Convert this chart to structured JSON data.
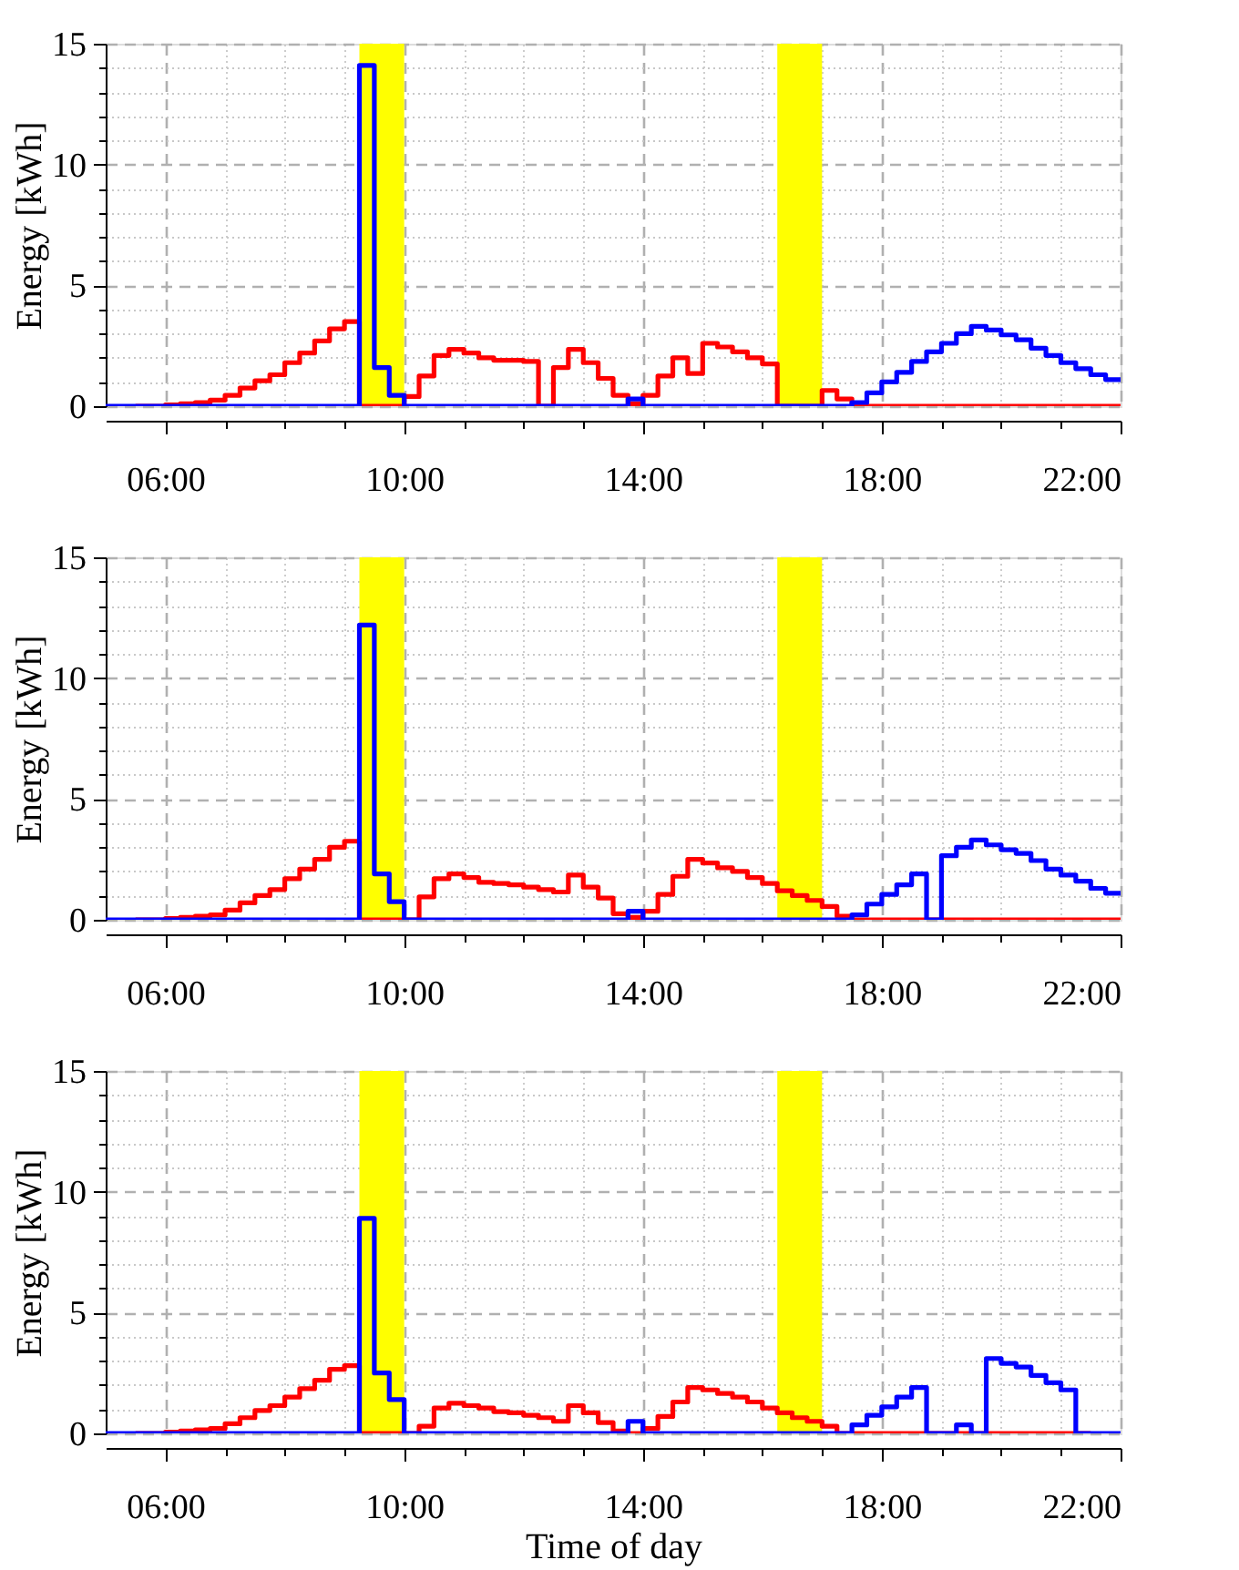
{
  "chart_data": [
    {
      "type": "step",
      "ylabel": "Energy [kWh]",
      "x": [
        5,
        5.25,
        5.5,
        5.75,
        6,
        6.25,
        6.5,
        6.75,
        7,
        7.25,
        7.5,
        7.75,
        8,
        8.25,
        8.5,
        8.75,
        9,
        9.25,
        9.5,
        9.75,
        10,
        10.25,
        10.5,
        10.75,
        11,
        11.25,
        11.5,
        11.75,
        12,
        12.25,
        12.5,
        12.75,
        13,
        13.25,
        13.5,
        13.75,
        14,
        14.25,
        14.5,
        14.75,
        15,
        15.25,
        15.5,
        15.75,
        16,
        16.25,
        16.5,
        16.75,
        17,
        17.25,
        17.5,
        17.75,
        18,
        18.25,
        18.5,
        18.75,
        19,
        19.25,
        19.5,
        19.75,
        20,
        20.25,
        20.5,
        20.75,
        21,
        21.25,
        21.5,
        21.75,
        22
      ],
      "series": [
        {
          "color": "#ff0000",
          "values": [
            null,
            null,
            0,
            0,
            0.05,
            0.1,
            0.15,
            0.25,
            0.45,
            0.75,
            1.05,
            1.3,
            1.8,
            2.2,
            2.7,
            3.2,
            3.5,
            0,
            0,
            0,
            0.4,
            1.25,
            2.1,
            2.35,
            2.2,
            2.0,
            1.9,
            1.9,
            1.85,
            0,
            1.6,
            2.35,
            1.8,
            1.15,
            0.45,
            0.1,
            0.45,
            1.25,
            2.0,
            1.35,
            2.6,
            2.45,
            2.25,
            2.0,
            1.75,
            0,
            0,
            0,
            0.65,
            0.3,
            0,
            0,
            0,
            0,
            0,
            0,
            0,
            0,
            0,
            0,
            0,
            0,
            0,
            0,
            0,
            0,
            0,
            0,
            0
          ]
        },
        {
          "color": "#0000ff",
          "values": [
            0,
            0,
            0,
            0,
            0,
            0,
            0,
            0,
            0,
            0,
            0,
            0,
            0,
            0,
            0,
            0,
            0,
            14.1,
            1.6,
            0.45,
            0,
            0,
            0,
            0,
            0,
            0,
            0,
            0,
            0,
            0,
            0,
            0,
            0,
            0,
            0,
            0.3,
            0,
            0,
            0,
            0,
            0,
            0,
            0,
            0,
            0,
            0,
            0,
            0,
            0,
            0,
            0.15,
            0.55,
            1.0,
            1.4,
            1.85,
            2.25,
            2.6,
            3.0,
            3.3,
            3.15,
            2.95,
            2.75,
            2.4,
            2.1,
            1.8,
            1.55,
            1.3,
            1.1,
            1.1
          ]
        }
      ],
      "xlim": [
        5,
        22
      ],
      "ylim": [
        0,
        15
      ],
      "xticks": [
        {
          "value": 6,
          "label": "06:00"
        },
        {
          "value": 7,
          "label": null
        },
        {
          "value": 8,
          "label": null
        },
        {
          "value": 9,
          "label": null
        },
        {
          "value": 10,
          "label": "10:00"
        },
        {
          "value": 11,
          "label": null
        },
        {
          "value": 12,
          "label": null
        },
        {
          "value": 13,
          "label": null
        },
        {
          "value": 14,
          "label": "14:00"
        },
        {
          "value": 15,
          "label": null
        },
        {
          "value": 16,
          "label": null
        },
        {
          "value": 17,
          "label": null
        },
        {
          "value": 18,
          "label": "18:00"
        },
        {
          "value": 19,
          "label": null
        },
        {
          "value": 20,
          "label": null
        },
        {
          "value": 21,
          "label": null
        },
        {
          "value": 22,
          "label": "22:00"
        }
      ],
      "yticks": [
        0,
        {
          "value": 1,
          "label": null
        },
        {
          "value": 2,
          "label": null
        },
        {
          "value": 3,
          "label": null
        },
        {
          "value": 4,
          "label": null
        },
        5,
        {
          "value": 6,
          "label": null
        },
        {
          "value": 7,
          "label": null
        },
        {
          "value": 8,
          "label": null
        },
        {
          "value": 9,
          "label": null
        },
        10,
        {
          "value": 11,
          "label": null
        },
        {
          "value": 12,
          "label": null
        },
        {
          "value": 13,
          "label": null
        },
        {
          "value": 14,
          "label": null
        },
        15
      ],
      "bands": [
        {
          "axis": "x",
          "from": 9.25,
          "to": 10,
          "color": "#ffff00"
        },
        {
          "axis": "x",
          "from": 16.25,
          "to": 17,
          "color": "#ffff00"
        }
      ],
      "grid": true
    },
    {
      "type": "step",
      "ylabel": "Energy [kWh]",
      "x": [
        5,
        5.25,
        5.5,
        5.75,
        6,
        6.25,
        6.5,
        6.75,
        7,
        7.25,
        7.5,
        7.75,
        8,
        8.25,
        8.5,
        8.75,
        9,
        9.25,
        9.5,
        9.75,
        10,
        10.25,
        10.5,
        10.75,
        11,
        11.25,
        11.5,
        11.75,
        12,
        12.25,
        12.5,
        12.75,
        13,
        13.25,
        13.5,
        13.75,
        14,
        14.25,
        14.5,
        14.75,
        15,
        15.25,
        15.5,
        15.75,
        16,
        16.25,
        16.5,
        16.75,
        17,
        17.25,
        17.5,
        17.75,
        18,
        18.25,
        18.5,
        18.75,
        19,
        19.25,
        19.5,
        19.75,
        20,
        20.25,
        20.5,
        20.75,
        21,
        21.25,
        21.5,
        21.75,
        22
      ],
      "series": [
        {
          "color": "#ff0000",
          "values": [
            null,
            null,
            0,
            0,
            0.05,
            0.1,
            0.15,
            0.2,
            0.4,
            0.7,
            1.0,
            1.25,
            1.7,
            2.1,
            2.5,
            3.0,
            3.25,
            0,
            0,
            0,
            0,
            0.95,
            1.7,
            1.9,
            1.75,
            1.55,
            1.5,
            1.45,
            1.35,
            1.25,
            1.15,
            1.85,
            1.35,
            0.9,
            0.25,
            0.1,
            0.35,
            1.05,
            1.8,
            2.5,
            2.35,
            2.15,
            2.0,
            1.75,
            1.5,
            1.2,
            1.0,
            0.8,
            0.55,
            0.15,
            0,
            0,
            0,
            0,
            0,
            0,
            0,
            0,
            0,
            0,
            0,
            0,
            0,
            0,
            0,
            0,
            0,
            0,
            0
          ]
        },
        {
          "color": "#0000ff",
          "values": [
            0,
            0,
            0,
            0,
            0,
            0,
            0,
            0,
            0,
            0,
            0,
            0,
            0,
            0,
            0,
            0,
            0,
            12.2,
            1.9,
            0.75,
            0,
            0,
            0,
            0,
            0,
            0,
            0,
            0,
            0,
            0,
            0,
            0,
            0,
            0,
            0,
            0.35,
            0,
            0,
            0,
            0,
            0,
            0,
            0,
            0,
            0,
            0,
            0,
            0,
            0,
            0,
            0.2,
            0.65,
            1.05,
            1.45,
            1.9,
            0,
            2.65,
            3.0,
            3.3,
            3.1,
            2.9,
            2.75,
            2.45,
            2.1,
            1.85,
            1.6,
            1.3,
            1.1,
            1.1
          ]
        }
      ],
      "xlim": [
        5,
        22
      ],
      "ylim": [
        0,
        15
      ],
      "xticks": [
        {
          "value": 6,
          "label": "06:00"
        },
        {
          "value": 7,
          "label": null
        },
        {
          "value": 8,
          "label": null
        },
        {
          "value": 9,
          "label": null
        },
        {
          "value": 10,
          "label": "10:00"
        },
        {
          "value": 11,
          "label": null
        },
        {
          "value": 12,
          "label": null
        },
        {
          "value": 13,
          "label": null
        },
        {
          "value": 14,
          "label": "14:00"
        },
        {
          "value": 15,
          "label": null
        },
        {
          "value": 16,
          "label": null
        },
        {
          "value": 17,
          "label": null
        },
        {
          "value": 18,
          "label": "18:00"
        },
        {
          "value": 19,
          "label": null
        },
        {
          "value": 20,
          "label": null
        },
        {
          "value": 21,
          "label": null
        },
        {
          "value": 22,
          "label": "22:00"
        }
      ],
      "yticks": [
        0,
        {
          "value": 1,
          "label": null
        },
        {
          "value": 2,
          "label": null
        },
        {
          "value": 3,
          "label": null
        },
        {
          "value": 4,
          "label": null
        },
        5,
        {
          "value": 6,
          "label": null
        },
        {
          "value": 7,
          "label": null
        },
        {
          "value": 8,
          "label": null
        },
        {
          "value": 9,
          "label": null
        },
        10,
        {
          "value": 11,
          "label": null
        },
        {
          "value": 12,
          "label": null
        },
        {
          "value": 13,
          "label": null
        },
        {
          "value": 14,
          "label": null
        },
        15
      ],
      "bands": [
        {
          "axis": "x",
          "from": 9.25,
          "to": 10,
          "color": "#ffff00"
        },
        {
          "axis": "x",
          "from": 16.25,
          "to": 17,
          "color": "#ffff00"
        }
      ],
      "grid": true
    },
    {
      "type": "step",
      "ylabel": "Energy [kWh]",
      "xlabel": "Time of day",
      "x": [
        5,
        5.25,
        5.5,
        5.75,
        6,
        6.25,
        6.5,
        6.75,
        7,
        7.25,
        7.5,
        7.75,
        8,
        8.25,
        8.5,
        8.75,
        9,
        9.25,
        9.5,
        9.75,
        10,
        10.25,
        10.5,
        10.75,
        11,
        11.25,
        11.5,
        11.75,
        12,
        12.25,
        12.5,
        12.75,
        13,
        13.25,
        13.5,
        13.75,
        14,
        14.25,
        14.5,
        14.75,
        15,
        15.25,
        15.5,
        15.75,
        16,
        16.25,
        16.5,
        16.75,
        17,
        17.25,
        17.5,
        17.75,
        18,
        18.25,
        18.5,
        18.75,
        19,
        19.25,
        19.5,
        19.75,
        20,
        20.25,
        20.5,
        20.75,
        21,
        21.25,
        21.5,
        21.75,
        22
      ],
      "series": [
        {
          "color": "#ff0000",
          "values": [
            null,
            null,
            0,
            0,
            0.05,
            0.1,
            0.15,
            0.2,
            0.4,
            0.65,
            0.95,
            1.15,
            1.5,
            1.85,
            2.2,
            2.65,
            2.8,
            0,
            0,
            0,
            0,
            0.3,
            1.05,
            1.25,
            1.15,
            1.05,
            0.9,
            0.85,
            0.75,
            0.65,
            0.5,
            1.15,
            0.85,
            0.45,
            0.1,
            0,
            0.2,
            0.7,
            1.3,
            1.9,
            1.8,
            1.65,
            1.5,
            1.3,
            1.05,
            0.85,
            0.65,
            0.5,
            0.3,
            0,
            0,
            0,
            0,
            0,
            0,
            0,
            0,
            0,
            0,
            0,
            0,
            0,
            0,
            0,
            0,
            0,
            0,
            null,
            null
          ]
        },
        {
          "color": "#0000ff",
          "values": [
            0,
            0,
            0,
            0,
            0,
            0,
            0,
            0,
            0,
            0,
            0,
            0,
            0,
            0,
            0,
            0,
            0,
            8.9,
            2.5,
            1.4,
            0,
            0,
            0,
            0,
            0,
            0,
            0,
            0,
            0,
            0,
            0,
            0,
            0,
            0,
            0,
            0.5,
            0,
            0,
            0,
            0,
            0,
            0,
            0,
            0,
            0,
            0,
            0,
            0,
            0,
            0,
            0.35,
            0.75,
            1.1,
            1.5,
            1.9,
            0,
            0,
            0.35,
            0,
            3.1,
            2.9,
            2.75,
            2.4,
            2.1,
            1.8,
            0,
            0,
            0,
            0
          ]
        }
      ],
      "xlim": [
        5,
        22
      ],
      "ylim": [
        0,
        15
      ],
      "xticks": [
        {
          "value": 6,
          "label": "06:00"
        },
        {
          "value": 7,
          "label": null
        },
        {
          "value": 8,
          "label": null
        },
        {
          "value": 9,
          "label": null
        },
        {
          "value": 10,
          "label": "10:00"
        },
        {
          "value": 11,
          "label": null
        },
        {
          "value": 12,
          "label": null
        },
        {
          "value": 13,
          "label": null
        },
        {
          "value": 14,
          "label": "14:00"
        },
        {
          "value": 15,
          "label": null
        },
        {
          "value": 16,
          "label": null
        },
        {
          "value": 17,
          "label": null
        },
        {
          "value": 18,
          "label": "18:00"
        },
        {
          "value": 19,
          "label": null
        },
        {
          "value": 20,
          "label": null
        },
        {
          "value": 21,
          "label": null
        },
        {
          "value": 22,
          "label": "22:00"
        }
      ],
      "yticks": [
        0,
        {
          "value": 1,
          "label": null
        },
        {
          "value": 2,
          "label": null
        },
        {
          "value": 3,
          "label": null
        },
        {
          "value": 4,
          "label": null
        },
        5,
        {
          "value": 6,
          "label": null
        },
        {
          "value": 7,
          "label": null
        },
        {
          "value": 8,
          "label": null
        },
        {
          "value": 9,
          "label": null
        },
        10,
        {
          "value": 11,
          "label": null
        },
        {
          "value": 12,
          "label": null
        },
        {
          "value": 13,
          "label": null
        },
        {
          "value": 14,
          "label": null
        },
        15
      ],
      "bands": [
        {
          "axis": "x",
          "from": 9.25,
          "to": 10,
          "color": "#ffff00"
        },
        {
          "axis": "x",
          "from": 16.25,
          "to": 17,
          "color": "#ffff00"
        }
      ],
      "grid": true
    }
  ]
}
